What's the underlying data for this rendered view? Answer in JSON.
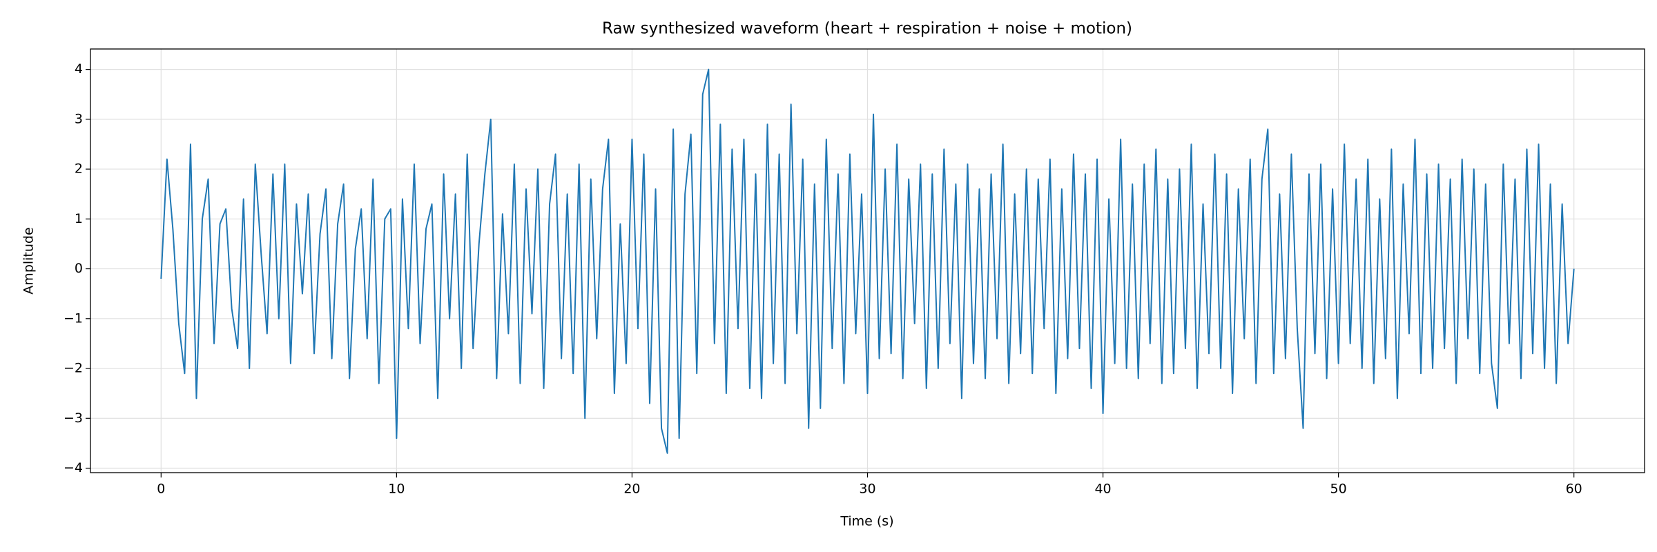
{
  "chart_data": {
    "type": "line",
    "title": "Raw synthesized waveform (heart + respiration + noise + motion)",
    "x_label": "Time (s)",
    "y_label": "Amplitude",
    "color": "#1f77b4",
    "grid": true,
    "xlim": [
      -3,
      63
    ],
    "ylim": [
      -4.09,
      4.41
    ],
    "xticks": [
      0,
      10,
      20,
      30,
      40,
      50,
      60
    ],
    "yticks": [
      {
        "value": -4,
        "label": "−4"
      },
      {
        "value": -3,
        "label": "−3"
      },
      {
        "value": -2,
        "label": "−2"
      },
      {
        "value": -1,
        "label": "−1"
      },
      0,
      1,
      2,
      3,
      4
    ],
    "x": [
      0,
      0.25,
      0.5,
      0.75,
      1,
      1.25,
      1.5,
      1.75,
      2,
      2.25,
      2.5,
      2.75,
      3,
      3.25,
      3.5,
      3.75,
      4,
      4.25,
      4.5,
      4.75,
      5,
      5.25,
      5.5,
      5.75,
      6,
      6.25,
      6.5,
      6.75,
      7,
      7.25,
      7.5,
      7.75,
      8,
      8.25,
      8.5,
      8.75,
      9,
      9.25,
      9.5,
      9.75,
      10,
      10.25,
      10.5,
      10.75,
      11,
      11.25,
      11.5,
      11.75,
      12,
      12.25,
      12.5,
      12.75,
      13,
      13.25,
      13.5,
      13.75,
      14,
      14.25,
      14.5,
      14.75,
      15,
      15.25,
      15.5,
      15.75,
      16,
      16.25,
      16.5,
      16.75,
      17,
      17.25,
      17.5,
      17.75,
      18,
      18.25,
      18.5,
      18.75,
      19,
      19.25,
      19.5,
      19.75,
      20,
      20.25,
      20.5,
      20.75,
      21,
      21.25,
      21.5,
      21.75,
      22,
      22.25,
      22.5,
      22.75,
      23,
      23.25,
      23.5,
      23.75,
      24,
      24.25,
      24.5,
      24.75,
      25,
      25.25,
      25.5,
      25.75,
      26,
      26.25,
      26.5,
      26.75,
      27,
      27.25,
      27.5,
      27.75,
      28,
      28.25,
      28.5,
      28.75,
      29,
      29.25,
      29.5,
      29.75,
      30,
      30.25,
      30.5,
      30.75,
      31,
      31.25,
      31.5,
      31.75,
      32,
      32.25,
      32.5,
      32.75,
      33,
      33.25,
      33.5,
      33.75,
      34,
      34.25,
      34.5,
      34.75,
      35,
      35.25,
      35.5,
      35.75,
      36,
      36.25,
      36.5,
      36.75,
      37,
      37.25,
      37.5,
      37.75,
      38,
      38.25,
      38.5,
      38.75,
      39,
      39.25,
      39.5,
      39.75,
      40,
      40.25,
      40.5,
      40.75,
      41,
      41.25,
      41.5,
      41.75,
      42,
      42.25,
      42.5,
      42.75,
      43,
      43.25,
      43.5,
      43.75,
      44,
      44.25,
      44.5,
      44.75,
      45,
      45.25,
      45.5,
      45.75,
      46,
      46.25,
      46.5,
      46.75,
      47,
      47.25,
      47.5,
      47.75,
      48,
      48.25,
      48.5,
      48.75,
      49,
      49.25,
      49.5,
      49.75,
      50,
      50.25,
      50.5,
      50.75,
      51,
      51.25,
      51.5,
      51.75,
      52,
      52.25,
      52.5,
      52.75,
      53,
      53.25,
      53.5,
      53.75,
      54,
      54.25,
      54.5,
      54.75,
      55,
      55.25,
      55.5,
      55.75,
      56,
      56.25,
      56.5,
      56.75,
      57,
      57.25,
      57.5,
      57.75,
      58,
      58.25,
      58.5,
      58.75,
      59,
      59.25,
      59.5,
      59.75,
      60
    ],
    "values": [
      -0.2,
      2.2,
      0.8,
      -1.1,
      -2.1,
      2.5,
      -2.6,
      1.0,
      1.8,
      -1.5,
      0.9,
      1.2,
      -0.8,
      -1.6,
      1.4,
      -2.0,
      2.1,
      0.3,
      -1.3,
      1.9,
      -1.0,
      2.1,
      -1.9,
      1.3,
      -0.5,
      1.5,
      -1.7,
      0.7,
      1.6,
      -1.8,
      0.9,
      1.7,
      -2.2,
      0.4,
      1.2,
      -1.4,
      1.8,
      -2.3,
      1.0,
      1.2,
      -3.4,
      1.4,
      -1.2,
      2.1,
      -1.5,
      0.8,
      1.3,
      -2.6,
      1.9,
      -1.0,
      1.5,
      -2.0,
      2.3,
      -1.6,
      0.5,
      1.9,
      3.0,
      -2.2,
      1.1,
      -1.3,
      2.1,
      -2.3,
      1.6,
      -0.9,
      2.0,
      -2.4,
      1.3,
      2.3,
      -1.8,
      1.5,
      -2.1,
      2.1,
      -3.0,
      1.8,
      -1.4,
      1.6,
      2.6,
      -2.5,
      0.9,
      -1.9,
      2.6,
      -1.2,
      2.3,
      -2.7,
      1.6,
      -3.2,
      -3.7,
      2.8,
      -3.4,
      1.5,
      2.7,
      -2.1,
      3.5,
      4.0,
      -1.5,
      2.9,
      -2.5,
      2.4,
      -1.2,
      2.6,
      -2.4,
      1.9,
      -2.6,
      2.9,
      -1.9,
      2.3,
      -2.3,
      3.3,
      -1.3,
      2.2,
      -3.2,
      1.7,
      -2.8,
      2.6,
      -1.6,
      1.9,
      -2.3,
      2.3,
      -1.3,
      1.5,
      -2.5,
      3.1,
      -1.8,
      2.0,
      -1.7,
      2.5,
      -2.2,
      1.8,
      -1.1,
      2.1,
      -2.4,
      1.9,
      -2.0,
      2.4,
      -1.5,
      1.7,
      -2.6,
      2.1,
      -1.9,
      1.6,
      -2.2,
      1.9,
      -1.4,
      2.5,
      -2.3,
      1.5,
      -1.7,
      2.0,
      -2.1,
      1.8,
      -1.2,
      2.2,
      -2.5,
      1.6,
      -1.8,
      2.3,
      -1.6,
      1.9,
      -2.4,
      2.2,
      -2.9,
      1.4,
      -1.9,
      2.6,
      -2.0,
      1.7,
      -2.2,
      2.1,
      -1.5,
      2.4,
      -2.3,
      1.8,
      -2.1,
      2.0,
      -1.6,
      2.5,
      -2.4,
      1.3,
      -1.7,
      2.3,
      -2.0,
      1.9,
      -2.5,
      1.6,
      -1.4,
      2.2,
      -2.3,
      1.8,
      2.8,
      -2.1,
      1.5,
      -1.8,
      2.3,
      -1.2,
      -3.2,
      1.9,
      -1.7,
      2.1,
      -2.2,
      1.6,
      -1.9,
      2.5,
      -1.5,
      1.8,
      -2.0,
      2.2,
      -2.3,
      1.4,
      -1.8,
      2.4,
      -2.6,
      1.7,
      -1.3,
      2.6,
      -2.1,
      1.9,
      -2.0,
      2.1,
      -1.6,
      1.8,
      -2.3,
      2.2,
      -1.4,
      2.0,
      -2.1,
      1.7,
      -1.9,
      -2.8,
      2.1,
      -1.5,
      1.8,
      -2.2,
      2.4,
      -1.7,
      2.5,
      -2.0,
      1.7,
      -2.3,
      1.3,
      -1.5,
      0.0
    ]
  }
}
